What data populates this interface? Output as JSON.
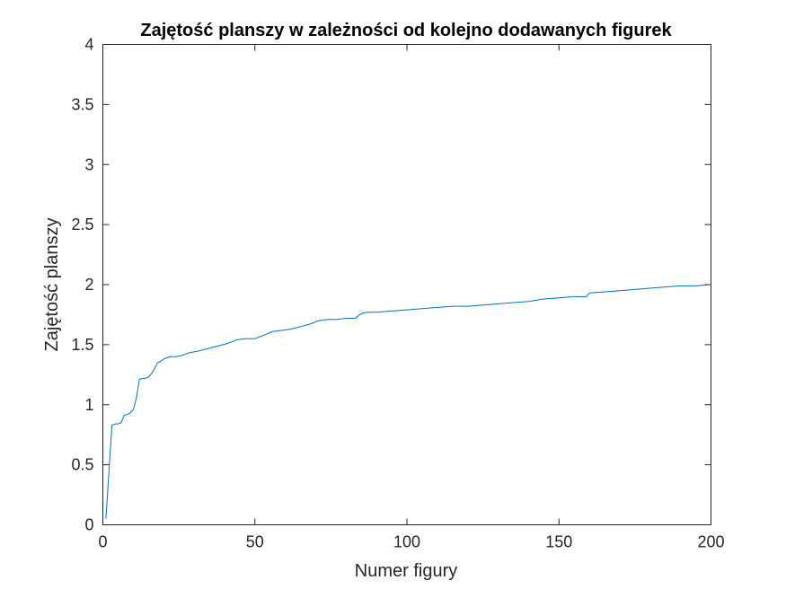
{
  "chart_data": {
    "type": "line",
    "title": "Zajętość planszy w zależności od kolejno dodawanych figurek",
    "xlabel": "Numer figury",
    "ylabel": "Zajętość planszy",
    "xlim": [
      0,
      200
    ],
    "ylim": [
      0,
      4
    ],
    "xticks": [
      0,
      50,
      100,
      150,
      200
    ],
    "xtick_labels": [
      "0",
      "50",
      "100",
      "150",
      "200"
    ],
    "yticks": [
      0,
      0.5,
      1,
      1.5,
      2,
      2.5,
      3,
      3.5,
      4
    ],
    "ytick_labels": [
      "0",
      "0.5",
      "1",
      "1.5",
      "2",
      "2.5",
      "3",
      "3.5",
      "4"
    ],
    "grid": false,
    "series_color": "#0072BD",
    "series": [
      {
        "x": [
          1,
          3,
          4,
          5,
          6,
          7,
          8,
          9,
          10,
          11,
          12,
          13,
          14,
          15,
          16,
          17,
          18,
          19,
          20,
          22,
          24,
          26,
          28,
          30,
          32,
          35,
          38,
          41,
          44,
          47,
          50,
          53,
          56,
          59,
          62,
          65,
          68,
          71,
          74,
          77,
          80,
          83,
          85,
          87,
          90,
          95,
          100,
          105,
          110,
          115,
          120,
          125,
          130,
          135,
          140,
          145,
          150,
          155,
          159,
          160,
          165,
          170,
          175,
          180,
          185,
          190,
          195,
          200
        ],
        "y": [
          0.05,
          0.83,
          0.84,
          0.84,
          0.85,
          0.91,
          0.92,
          0.93,
          0.96,
          1.05,
          1.21,
          1.22,
          1.22,
          1.23,
          1.26,
          1.3,
          1.35,
          1.36,
          1.38,
          1.4,
          1.4,
          1.41,
          1.43,
          1.44,
          1.45,
          1.47,
          1.49,
          1.51,
          1.54,
          1.55,
          1.55,
          1.58,
          1.61,
          1.62,
          1.63,
          1.65,
          1.67,
          1.7,
          1.71,
          1.71,
          1.72,
          1.72,
          1.76,
          1.77,
          1.77,
          1.78,
          1.79,
          1.8,
          1.81,
          1.82,
          1.82,
          1.83,
          1.84,
          1.85,
          1.86,
          1.88,
          1.89,
          1.9,
          1.9,
          1.93,
          1.94,
          1.95,
          1.96,
          1.97,
          1.98,
          1.99,
          1.99,
          2.0
        ]
      }
    ]
  }
}
